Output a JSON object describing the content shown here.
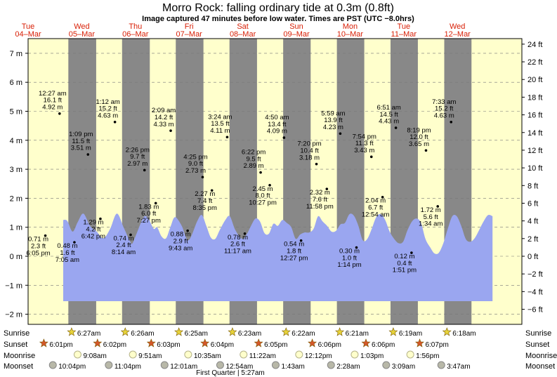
{
  "chart_data": {
    "type": "area",
    "title": "Morro Rock: falling  ordinary tide at 0.3m (0.8ft)",
    "subtitle": "Image captured 47 minutes before low water. Times are PST (UTC −8.0hrs)",
    "ylim_m": [
      -2.2,
      7.6
    ],
    "y_ticks_m": [
      "−2 m",
      "−1 m",
      "0 m",
      "1 m",
      "2 m",
      "3 m",
      "4 m",
      "5 m",
      "6 m",
      "7 m"
    ],
    "y_tick_values_m": [
      -2,
      -1,
      0,
      1,
      2,
      3,
      4,
      5,
      6,
      7
    ],
    "y_ticks_ft": [
      "−6 ft",
      "−4 ft",
      "−2 ft",
      "0 ft",
      "2 ft",
      "4 ft",
      "6 ft",
      "8 ft",
      "10 ft",
      "12 ft",
      "14 ft",
      "16 ft",
      "18 ft",
      "20 ft",
      "22 ft",
      "24 ft"
    ],
    "y_tick_values_ft": [
      -6,
      -4,
      -2,
      0,
      2,
      4,
      6,
      8,
      10,
      12,
      14,
      16,
      18,
      20,
      22,
      24
    ],
    "x_range_hours": [
      0,
      192
    ],
    "days": [
      {
        "name": "Tue",
        "date": "04–Mar",
        "hour": 0
      },
      {
        "name": "Wed",
        "date": "05–Mar",
        "hour": 24
      },
      {
        "name": "Thu",
        "date": "06–Mar",
        "hour": 48
      },
      {
        "name": "Fri",
        "date": "07–Mar",
        "hour": 72
      },
      {
        "name": "Sat",
        "date": "08–Mar",
        "hour": 96
      },
      {
        "name": "Sun",
        "date": "09–Mar",
        "hour": 120
      },
      {
        "name": "Mon",
        "date": "10–Mar",
        "hour": 144
      },
      {
        "name": "Tue",
        "date": "11–Mar",
        "hour": 168
      },
      {
        "name": "Wed",
        "date": "12–Mar",
        "hour": 192
      }
    ],
    "day_label_color": "#d81e05",
    "daylight_color": "#ffffcc",
    "night_color": "#888888",
    "tide_fill_color": "#9aa6f0",
    "nights": [
      {
        "from": 18.0,
        "to": 30.45
      },
      {
        "from": 42.03,
        "to": 54.43
      },
      {
        "from": 66.05,
        "to": 78.42
      },
      {
        "from": 90.07,
        "to": 102.38
      },
      {
        "from": 114.08,
        "to": 126.37
      },
      {
        "from": 138.1,
        "to": 150.35
      },
      {
        "from": 162.1,
        "to": 174.32
      },
      {
        "from": 186.12,
        "to": 198.3
      }
    ],
    "extremes": [
      {
        "hour": 18.08,
        "lines": [
          "0.71 m",
          "2.3 ft",
          "6:05 pm"
        ],
        "value_m": 0.71
      },
      {
        "hour": 24.45,
        "lines": [
          "12:27 am",
          "16.1 ft",
          "4.92 m"
        ],
        "value_m": 4.92
      },
      {
        "hour": 31.08,
        "lines": [
          "0.48 m",
          "1.6 ft",
          "7:05 am"
        ],
        "value_m": 0.48
      },
      {
        "hour": 37.15,
        "lines": [
          "1:09 pm",
          "11.5 ft",
          "3.51 m"
        ],
        "value_m": 3.51
      },
      {
        "hour": 42.7,
        "lines": [
          "1.29 m",
          "4.2 ft",
          "6:42 pm"
        ],
        "value_m": 1.29
      },
      {
        "hour": 49.2,
        "lines": [
          "1:12 am",
          "15.2 ft",
          "4.63 m"
        ],
        "value_m": 4.63
      },
      {
        "hour": 56.23,
        "lines": [
          "0.74 m",
          "2.4 ft",
          "8:14 am"
        ],
        "value_m": 0.74
      },
      {
        "hour": 62.43,
        "lines": [
          "2:26 pm",
          "9.7 ft",
          "2.97 m"
        ],
        "value_m": 2.97
      },
      {
        "hour": 67.45,
        "lines": [
          "1.83 m",
          "6.0 ft",
          "7:27 pm"
        ],
        "value_m": 1.83
      },
      {
        "hour": 74.15,
        "lines": [
          "2:09 am",
          "14.2 ft",
          "4.33 m"
        ],
        "value_m": 4.33
      },
      {
        "hour": 81.72,
        "lines": [
          "0.88 m",
          "2.9 ft",
          "9:43 am"
        ],
        "value_m": 0.88
      },
      {
        "hour": 88.42,
        "lines": [
          "4:25 pm",
          "9.0 ft",
          "2.73 m"
        ],
        "value_m": 2.73
      },
      {
        "hour": 92.58,
        "lines": [
          "2.27 m",
          "7.4 ft",
          "8:35 pm"
        ],
        "value_m": 2.27
      },
      {
        "hour": 99.4,
        "lines": [
          "3:24 am",
          "13.5 ft",
          "4.11 m"
        ],
        "value_m": 4.11
      },
      {
        "hour": 107.28,
        "lines": [
          "0.78 m",
          "2.6 ft",
          "11:17 am"
        ],
        "value_m": 0.78
      },
      {
        "hour": 114.37,
        "lines": [
          "6:22 pm",
          "9.5 ft",
          "2.89 m"
        ],
        "value_m": 2.89
      },
      {
        "hour": 118.45,
        "lines": [
          "2.45 m",
          "8.0 ft",
          "10:27 pm"
        ],
        "value_m": 2.45
      },
      {
        "hour": 124.83,
        "lines": [
          "4:50 am",
          "13.4 ft",
          "4.09 m"
        ],
        "value_m": 4.09
      },
      {
        "hour": 132.45,
        "lines": [
          "0.54 m",
          "1.8 ft",
          "12:27 pm"
        ],
        "value_m": 0.54
      },
      {
        "hour": 139.33,
        "lines": [
          "7:20 pm",
          "10.4 ft",
          "3.18 m"
        ],
        "value_m": 3.18
      },
      {
        "hour": 143.97,
        "lines": [
          "2.32 m",
          "7.6 ft",
          "11:58 pm"
        ],
        "value_m": 2.32
      },
      {
        "hour": 149.98,
        "lines": [
          "5:59 am",
          "13.9 ft",
          "4.23 m"
        ],
        "value_m": 4.23
      },
      {
        "hour": 157.23,
        "lines": [
          "0.30 m",
          "1.0 ft",
          "1:14 pm"
        ],
        "value_m": 0.3
      },
      {
        "hour": 163.9,
        "lines": [
          "7:54 pm",
          "11.3 ft",
          "3.43 m"
        ],
        "value_m": 3.43
      },
      {
        "hour": 168.9,
        "lines": [
          "2.04 m",
          "6.7 ft",
          "12:54 am"
        ],
        "value_m": 2.04
      },
      {
        "hour": 174.85,
        "lines": [
          "6:51 am",
          "14.5 ft",
          "4.43 m"
        ],
        "value_m": 4.43
      },
      {
        "hour": 181.85,
        "lines": [
          "0.12 m",
          "0.4 ft",
          "1:51 pm"
        ],
        "value_m": 0.12
      },
      {
        "hour": 188.32,
        "lines": [
          "8:19 pm",
          "12.0 ft",
          "3.65 m"
        ],
        "value_m": 3.65
      },
      {
        "hour": 193.57,
        "lines": [
          "1.72 m",
          "5.6 ft",
          "1:34 am"
        ],
        "value_m": 1.72
      },
      {
        "hour": 199.55,
        "lines": [
          "7:33 am",
          "15.2 ft",
          "4.63 m"
        ],
        "value_m": 4.63
      }
    ],
    "tide_curve_m": [
      {
        "h": 0,
        "m": 1.25
      },
      {
        "h": 1.8,
        "m": 1.22
      },
      {
        "h": 4.2,
        "m": 0.85
      },
      {
        "h": 6.5,
        "m": 1.18
      },
      {
        "h": 9.0,
        "m": 1.47
      },
      {
        "h": 12.0,
        "m": 1.05
      },
      {
        "h": 15.0,
        "m": 0.85
      },
      {
        "h": 18.0,
        "m": 0.62
      },
      {
        "h": 21.0,
        "m": 0.95
      },
      {
        "h": 24.0,
        "m": 1.47
      },
      {
        "h": 27.0,
        "m": 1.0
      },
      {
        "h": 30.0,
        "m": 0.5
      },
      {
        "h": 31.0,
        "m": 0.45
      },
      {
        "h": 33.0,
        "m": 0.82
      },
      {
        "h": 36.0,
        "m": 1.35
      },
      {
        "h": 38.0,
        "m": 1.3
      },
      {
        "h": 40.5,
        "m": 0.95
      },
      {
        "h": 42.0,
        "m": 1.0
      },
      {
        "h": 44.0,
        "m": 0.68
      },
      {
        "h": 46.0,
        "m": 0.62
      },
      {
        "h": 48.0,
        "m": 1.02
      },
      {
        "h": 50.0,
        "m": 1.35
      },
      {
        "h": 53.0,
        "m": 1.05
      },
      {
        "h": 56.0,
        "m": 0.55
      },
      {
        "h": 60.0,
        "m": 1.22
      },
      {
        "h": 62.0,
        "m": 1.42
      },
      {
        "h": 64.0,
        "m": 1.05
      },
      {
        "h": 66.0,
        "m": 0.65
      },
      {
        "h": 68.0,
        "m": 0.6
      },
      {
        "h": 70.0,
        "m": 0.9
      },
      {
        "h": 72.5,
        "m": 1.25
      },
      {
        "h": 74.5,
        "m": 1.38
      },
      {
        "h": 77.0,
        "m": 0.9
      },
      {
        "h": 80.0,
        "m": 0.6
      },
      {
        "h": 82.0,
        "m": 0.75
      },
      {
        "h": 84.0,
        "m": 1.05
      },
      {
        "h": 86.0,
        "m": 1.3
      },
      {
        "h": 88.0,
        "m": 1.2
      },
      {
        "h": 90.0,
        "m": 0.8
      },
      {
        "h": 92.0,
        "m": 0.78
      },
      {
        "h": 94.0,
        "m": 1.12
      },
      {
        "h": 96.0,
        "m": 1.05
      },
      {
        "h": 98.0,
        "m": 1.25
      },
      {
        "h": 100.0,
        "m": 1.15
      },
      {
        "h": 102.0,
        "m": 1.0
      },
      {
        "h": 104.0,
        "m": 0.6
      },
      {
        "h": 106.0,
        "m": 0.75
      },
      {
        "h": 108.0,
        "m": 0.82
      },
      {
        "h": 110.0,
        "m": 0.82
      },
      {
        "h": 112.0,
        "m": 0.95
      },
      {
        "h": 114.0,
        "m": 1.38
      },
      {
        "h": 116.0,
        "m": 1.2
      },
      {
        "h": 118.0,
        "m": 1.05
      },
      {
        "h": 120.0,
        "m": 0.85
      },
      {
        "h": 122.0,
        "m": 0.88
      },
      {
        "h": 124.0,
        "m": 1.1
      },
      {
        "h": 126.0,
        "m": 1.15
      },
      {
        "h": 128.0,
        "m": 1.45
      },
      {
        "h": 130.0,
        "m": 1.4
      },
      {
        "h": 132.0,
        "m": 1.05
      },
      {
        "h": 134.0,
        "m": 0.55
      },
      {
        "h": 136.0,
        "m": 0.6
      },
      {
        "h": 138.0,
        "m": 0.95
      },
      {
        "h": 140.0,
        "m": 1.35
      },
      {
        "h": 142.0,
        "m": 1.45
      },
      {
        "h": 144.0,
        "m": 1.25
      },
      {
        "h": 146.0,
        "m": 0.85
      },
      {
        "h": 148.0,
        "m": 0.6
      },
      {
        "h": 150.0,
        "m": 0.45
      },
      {
        "h": 152.0,
        "m": 0.5
      },
      {
        "h": 154.0,
        "m": 0.9
      },
      {
        "h": 156.0,
        "m": 1.2
      },
      {
        "h": 158.0,
        "m": 1.3
      },
      {
        "h": 160.0,
        "m": 1.15
      },
      {
        "h": 162.0,
        "m": 0.6
      },
      {
        "h": 164.0,
        "m": 0.32
      },
      {
        "h": 166.0,
        "m": 0.1
      },
      {
        "h": 168.0,
        "m": 0.12
      },
      {
        "h": 170.0,
        "m": 0.45
      },
      {
        "h": 172.0,
        "m": 0.95
      },
      {
        "h": 174.0,
        "m": 1.38
      },
      {
        "h": 176.0,
        "m": 1.38
      },
      {
        "h": 178.0,
        "m": 1.05
      },
      {
        "h": 180.0,
        "m": 0.6
      },
      {
        "h": 182.0,
        "m": 0.5
      },
      {
        "h": 184.0,
        "m": 0.62
      },
      {
        "h": 186.0,
        "m": 0.9
      },
      {
        "h": 188.0,
        "m": 1.2
      },
      {
        "h": 190.0,
        "m": 1.42
      },
      {
        "h": 192.0,
        "m": 1.38
      }
    ],
    "tide_area_floor_m": -1.55,
    "sun_moon_rows": [
      {
        "label": "Sunrise",
        "marker": "star-yellow",
        "events": [
          {
            "hour": 30.45,
            "time": "6:27am"
          },
          {
            "hour": 54.43,
            "time": "6:26am"
          },
          {
            "hour": 78.42,
            "time": "6:25am"
          },
          {
            "hour": 102.38,
            "time": "6:23am"
          },
          {
            "hour": 126.37,
            "time": "6:22am"
          },
          {
            "hour": 150.35,
            "time": "6:21am"
          },
          {
            "hour": 174.32,
            "time": "6:19am"
          },
          {
            "hour": 198.3,
            "time": "6:18am"
          }
        ]
      },
      {
        "label": "Sunset",
        "marker": "star-orange",
        "events": [
          {
            "hour": 18.02,
            "time": "6:01pm"
          },
          {
            "hour": 42.03,
            "time": "6:02pm"
          },
          {
            "hour": 66.05,
            "time": "6:03pm"
          },
          {
            "hour": 90.07,
            "time": "6:04pm"
          },
          {
            "hour": 114.08,
            "time": "6:05pm"
          },
          {
            "hour": 138.1,
            "time": "6:06pm"
          },
          {
            "hour": 162.1,
            "time": "6:06pm"
          },
          {
            "hour": 186.12,
            "time": "6:07pm"
          }
        ]
      },
      {
        "label": "Moonrise",
        "marker": "moon-light",
        "events": [
          {
            "hour": 33.13,
            "time": "9:08am"
          },
          {
            "hour": 57.85,
            "time": "9:51am"
          },
          {
            "hour": 82.58,
            "time": "10:35am"
          },
          {
            "hour": 107.37,
            "time": "11:22am"
          },
          {
            "hour": 132.2,
            "time": "12:12pm"
          },
          {
            "hour": 157.05,
            "time": "1:03pm"
          },
          {
            "hour": 181.93,
            "time": "1:56pm"
          }
        ]
      },
      {
        "label": "Moonset",
        "marker": "moon-dark",
        "events": [
          {
            "hour": 22.07,
            "time": "10:04pm"
          },
          {
            "hour": 47.07,
            "time": "11:04pm"
          },
          {
            "hour": 72.02,
            "time": "12:01am"
          },
          {
            "hour": 96.9,
            "time": "12:54am"
          },
          {
            "hour": 121.72,
            "time": "1:43am"
          },
          {
            "hour": 146.47,
            "time": "2:28am"
          },
          {
            "hour": 171.15,
            "time": "3:09am"
          },
          {
            "hour": 195.78,
            "time": "3:47am"
          }
        ]
      }
    ],
    "moon_phase_note": "First Quarter | 5:27am",
    "moon_phase_hour": 101.45
  }
}
